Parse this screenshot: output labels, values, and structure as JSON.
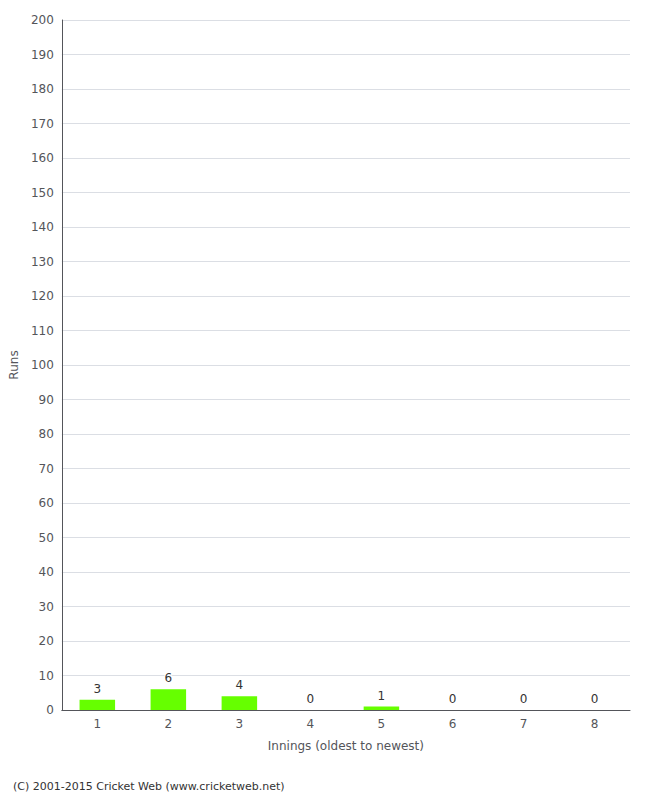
{
  "chart_data": {
    "type": "bar",
    "categories": [
      "1",
      "2",
      "3",
      "4",
      "5",
      "6",
      "7",
      "8"
    ],
    "values": [
      3,
      6,
      4,
      0,
      1,
      0,
      0,
      0
    ],
    "color": "#66ff00",
    "xlabel": "Innings (oldest to newest)",
    "ylabel": "Runs",
    "ylim": [
      0,
      200
    ],
    "yticks": [
      0,
      10,
      20,
      30,
      40,
      50,
      60,
      70,
      80,
      90,
      100,
      110,
      120,
      130,
      140,
      150,
      160,
      170,
      180,
      190,
      200
    ],
    "grid": true,
    "data_labels": true,
    "annotations": [
      "(C) 2001-2015 Cricket Web (www.cricketweb.net)"
    ]
  }
}
